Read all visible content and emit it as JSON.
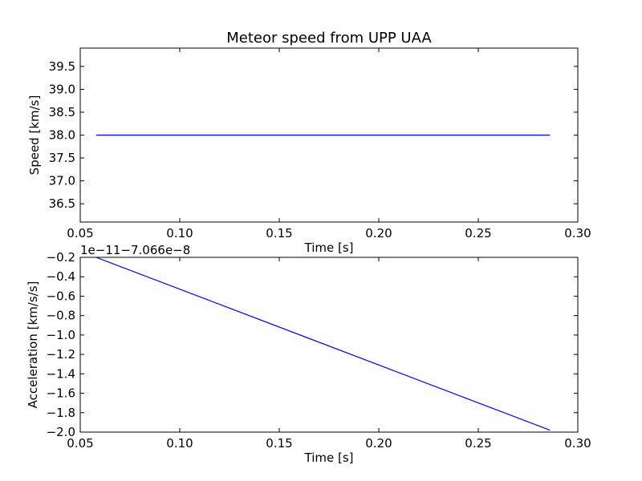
{
  "chart_data": [
    {
      "type": "line",
      "title": "Meteor speed from  UPP UAA",
      "xlabel": "Time [s]",
      "ylabel": "Speed [km/s]",
      "xlim": [
        0.05,
        0.3
      ],
      "ylim": [
        36.1,
        39.9
      ],
      "xticks": [
        0.05,
        0.1,
        0.15,
        0.2,
        0.25,
        0.3
      ],
      "xtick_labels": [
        "0.05",
        "0.10",
        "0.15",
        "0.20",
        "0.25",
        "0.30"
      ],
      "yticks": [
        36.5,
        37.0,
        37.5,
        38.0,
        38.5,
        39.0,
        39.5
      ],
      "ytick_labels": [
        "36.5",
        "37.0",
        "37.5",
        "38.0",
        "38.5",
        "39.0",
        "39.5"
      ],
      "series": [
        {
          "color": "#0000ff",
          "x": [
            0.058,
            0.286
          ],
          "y": [
            38.0,
            38.0
          ]
        }
      ]
    },
    {
      "type": "line",
      "title": "",
      "xlabel": "Time [s]",
      "ylabel": "Acceleration [km/s/s]",
      "offset_text": "1e−11−7.066e−8",
      "xlim": [
        0.05,
        0.3
      ],
      "ylim": [
        -2.0,
        -0.2
      ],
      "xticks": [
        0.05,
        0.1,
        0.15,
        0.2,
        0.25,
        0.3
      ],
      "xtick_labels": [
        "0.05",
        "0.10",
        "0.15",
        "0.20",
        "0.25",
        "0.30"
      ],
      "yticks": [
        -2.0,
        -1.8,
        -1.6,
        -1.4,
        -1.2,
        -1.0,
        -0.8,
        -0.6,
        -0.4,
        -0.2
      ],
      "ytick_labels": [
        "−2.0",
        "−1.8",
        "−1.6",
        "−1.4",
        "−1.2",
        "−1.0",
        "−0.8",
        "−0.6",
        "−0.4",
        "−0.2"
      ],
      "series": [
        {
          "color": "#0000ff",
          "x": [
            0.058,
            0.286
          ],
          "y": [
            -0.2,
            -1.98
          ]
        }
      ]
    }
  ]
}
